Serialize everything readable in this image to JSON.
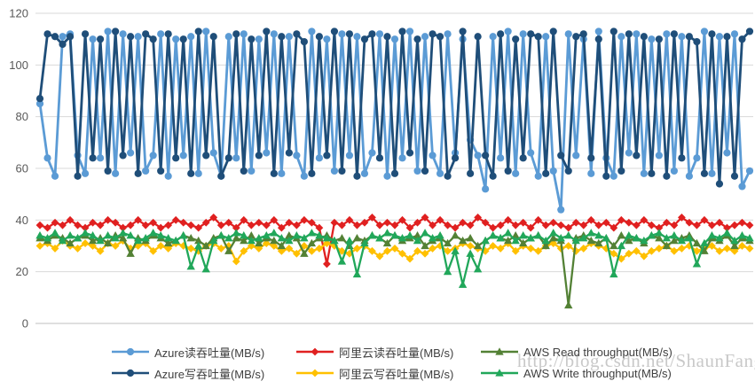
{
  "watermark": "http://blog.csdn.net/ShaunFang",
  "chart_data": {
    "type": "line",
    "title": "",
    "xlabel": "",
    "ylabel": "",
    "ylim": [
      0,
      120
    ],
    "yticks": [
      0,
      20,
      40,
      60,
      80,
      100,
      120
    ],
    "grid": "horizontal",
    "legend_position": "bottom",
    "x_tick_labels": [],
    "series": [
      {
        "name": "Azure读吞吐量(MB/s)",
        "color": "#5B9BD5",
        "marker": "circle",
        "values": [
          85,
          64,
          57,
          111,
          112,
          65,
          58,
          110,
          64,
          113,
          58,
          112,
          66,
          111,
          59,
          65,
          112,
          57,
          110,
          65,
          111,
          58,
          113,
          66,
          57,
          111,
          64,
          112,
          59,
          110,
          66,
          112,
          58,
          111,
          65,
          57,
          113,
          64,
          110,
          59,
          112,
          65,
          111,
          58,
          66,
          112,
          57,
          110,
          64,
          113,
          59,
          111,
          65,
          58,
          112,
          66,
          110,
          71,
          65,
          52,
          111,
          64,
          113,
          58,
          112,
          66,
          57,
          111,
          59,
          44,
          112,
          65,
          110,
          58,
          113,
          64,
          57,
          111,
          66,
          112,
          58,
          110,
          65,
          112,
          59,
          111,
          57,
          64,
          113,
          58,
          111,
          66,
          112,
          53,
          59
        ]
      },
      {
        "name": "Azure写吞吐量(MB/s)",
        "color": "#1F4E79",
        "marker": "circle",
        "values": [
          87,
          112,
          111,
          108,
          111,
          57,
          112,
          64,
          110,
          59,
          113,
          65,
          111,
          58,
          112,
          110,
          59,
          112,
          64,
          110,
          58,
          113,
          65,
          111,
          57,
          64,
          112,
          59,
          110,
          65,
          113,
          58,
          111,
          66,
          112,
          109,
          58,
          111,
          65,
          113,
          59,
          112,
          57,
          110,
          112,
          64,
          111,
          58,
          113,
          66,
          110,
          59,
          112,
          111,
          57,
          64,
          113,
          58,
          111,
          65,
          57,
          112,
          59,
          110,
          64,
          112,
          111,
          58,
          113,
          65,
          59,
          111,
          112,
          64,
          110,
          57,
          113,
          59,
          112,
          65,
          111,
          58,
          110,
          57,
          112,
          64,
          111,
          109,
          58,
          112,
          54,
          111,
          57,
          110,
          113
        ]
      },
      {
        "name": "阿里云读吞吐量(MB/s)",
        "color": "#E02020",
        "marker": "diamond",
        "values": [
          38,
          37,
          39,
          38,
          40,
          38,
          37,
          39,
          38,
          40,
          39,
          37,
          38,
          40,
          38,
          39,
          37,
          38,
          40,
          39,
          38,
          37,
          39,
          41,
          38,
          39,
          37,
          40,
          38,
          39,
          38,
          40,
          37,
          39,
          38,
          40,
          39,
          37,
          23,
          39,
          38,
          40,
          38,
          39,
          41,
          38,
          39,
          38,
          40,
          37,
          39,
          41,
          38,
          40,
          38,
          37,
          39,
          38,
          41,
          39,
          37,
          38,
          40,
          38,
          39,
          37,
          40,
          38,
          39,
          38,
          37,
          39,
          38,
          40,
          38,
          39,
          37,
          40,
          39,
          38,
          40,
          38,
          37,
          39,
          38,
          41,
          39,
          38,
          40,
          38,
          39,
          37,
          38,
          39,
          38
        ]
      },
      {
        "name": "阿里云写吞吐量(MB/s)",
        "color": "#FFC000",
        "marker": "diamond",
        "values": [
          30,
          31,
          29,
          32,
          30,
          29,
          31,
          30,
          28,
          31,
          30,
          32,
          29,
          30,
          31,
          28,
          30,
          29,
          31,
          30,
          29,
          28,
          30,
          31,
          29,
          30,
          24,
          28,
          30,
          29,
          31,
          30,
          28,
          29,
          27,
          30,
          28,
          29,
          31,
          30,
          28,
          27,
          29,
          30,
          28,
          26,
          28,
          29,
          27,
          25,
          28,
          27,
          29,
          30,
          28,
          29,
          31,
          30,
          29,
          28,
          30,
          29,
          31,
          28,
          30,
          29,
          28,
          30,
          31,
          29,
          30,
          28,
          29,
          31,
          30,
          29,
          27,
          25,
          27,
          28,
          26,
          28,
          29,
          30,
          28,
          29,
          30,
          28,
          29,
          30,
          28,
          29,
          28,
          30,
          29
        ]
      },
      {
        "name": "AWS Read throughput(MB/s)",
        "color": "#538135",
        "marker": "triangle",
        "values": [
          33,
          32,
          34,
          33,
          31,
          33,
          34,
          32,
          33,
          31,
          34,
          33,
          27,
          33,
          32,
          34,
          33,
          31,
          32,
          34,
          33,
          32,
          30,
          33,
          34,
          28,
          33,
          32,
          34,
          31,
          33,
          32,
          30,
          34,
          33,
          27,
          31,
          33,
          34,
          32,
          33,
          30,
          33,
          32,
          34,
          33,
          31,
          34,
          32,
          33,
          34,
          30,
          32,
          33,
          31,
          34,
          32,
          33,
          30,
          32,
          34,
          33,
          32,
          34,
          31,
          33,
          34,
          30,
          33,
          32,
          7,
          33,
          34,
          32,
          31,
          33,
          30,
          34,
          32,
          33,
          31,
          34,
          33,
          30,
          32,
          33,
          34,
          31,
          28,
          33,
          32,
          34,
          30,
          33,
          32
        ]
      },
      {
        "name": "AWS Write throughput(MB/s)",
        "color": "#21A75A",
        "marker": "triangle",
        "values": [
          34,
          33,
          35,
          32,
          34,
          33,
          35,
          34,
          32,
          34,
          33,
          35,
          34,
          32,
          33,
          35,
          34,
          33,
          32,
          34,
          22,
          30,
          21,
          32,
          34,
          33,
          35,
          34,
          32,
          33,
          34,
          35,
          33,
          32,
          34,
          33,
          35,
          34,
          33,
          32,
          24,
          32,
          19,
          31,
          34,
          33,
          35,
          34,
          33,
          34,
          32,
          35,
          33,
          34,
          20,
          28,
          15,
          27,
          21,
          32,
          34,
          33,
          35,
          32,
          34,
          33,
          34,
          32,
          35,
          33,
          34,
          32,
          33,
          35,
          34,
          33,
          19,
          30,
          34,
          33,
          32,
          34,
          35,
          33,
          34,
          32,
          33,
          23,
          31,
          34,
          33,
          35,
          32,
          34,
          33
        ]
      }
    ]
  }
}
